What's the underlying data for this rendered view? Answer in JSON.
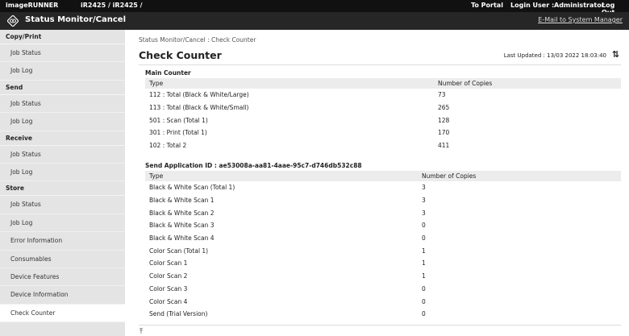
{
  "topbar": {
    "brand": "imageRUNNER",
    "model": "iR2425 / iR2425 /",
    "portal": "To Portal",
    "login_label": "Login User :",
    "user": "Administrator",
    "logout": "Log Out"
  },
  "header": {
    "title": "Status Monitor/Cancel",
    "mail": "E-Mail to System Manager"
  },
  "sidebar": {
    "groups": [
      {
        "label": "Copy/Print",
        "items": [
          "Job Status",
          "Job Log"
        ]
      },
      {
        "label": "Send",
        "items": [
          "Job Status",
          "Job Log"
        ]
      },
      {
        "label": "Receive",
        "items": [
          "Job Status",
          "Job Log"
        ]
      },
      {
        "label": "Store",
        "items": [
          "Job Status",
          "Job Log"
        ]
      }
    ],
    "extra": [
      "Error Information",
      "Consumables",
      "Device Features",
      "Device Information",
      "Check Counter"
    ]
  },
  "main": {
    "breadcrumb": "Status Monitor/Cancel : Check Counter",
    "title": "Check Counter",
    "last_updated": "Last Updated : 13/03 2022 18:03:40",
    "main_counter": {
      "title": "Main Counter",
      "headers": [
        "Type",
        "Number of Copies"
      ],
      "rows": [
        [
          "112 : Total (Black & White/Large)",
          "73"
        ],
        [
          "113 : Total (Black & White/Small)",
          "265"
        ],
        [
          "501 : Scan (Total 1)",
          "128"
        ],
        [
          "301 : Print (Total 1)",
          "170"
        ],
        [
          "102 : Total 2",
          "411"
        ]
      ]
    },
    "send_counter": {
      "title": "Send Application ID : ae53008a-aa81-4aae-95c7-d746db532c88",
      "headers": [
        "Type",
        "Number of Copies"
      ],
      "rows": [
        [
          "Black & White Scan (Total 1)",
          "3"
        ],
        [
          "Black & White Scan 1",
          "3"
        ],
        [
          "Black & White Scan 2",
          "3"
        ],
        [
          "Black & White Scan 3",
          "0"
        ],
        [
          "Black & White Scan 4",
          "0"
        ],
        [
          "Color Scan (Total 1)",
          "1"
        ],
        [
          "Color Scan 1",
          "1"
        ],
        [
          "Color Scan 2",
          "1"
        ],
        [
          "Color Scan 3",
          "0"
        ],
        [
          "Color Scan 4",
          "0"
        ],
        [
          "Send (Trial Version)",
          "0"
        ]
      ]
    }
  }
}
